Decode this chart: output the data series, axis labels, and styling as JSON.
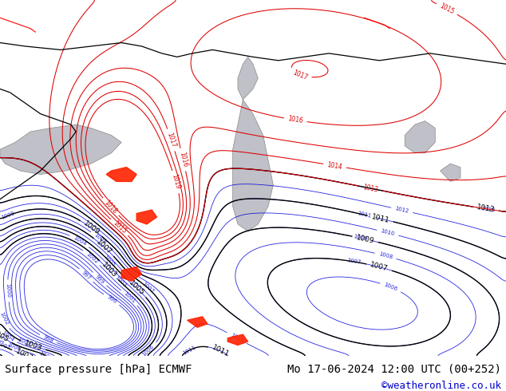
{
  "title_left": "Surface pressure [hPa] ECMWF",
  "title_right": "Mo 17-06-2024 12:00 UTC (00+252)",
  "credit": "©weatheronline.co.uk",
  "bg_color": "#c8f0a0",
  "footer_bg": "#d0d0d0",
  "footer_text_color": "#000000",
  "credit_color": "#0000cc",
  "contour_black": "#000000",
  "contour_blue": "#0000dd",
  "contour_red": "#dd0000",
  "caspian_color": "#c0c0c8",
  "black_sea_color": "#c0c0c8",
  "aral_color": "#c0c0c8",
  "red_fill_color": "#ff2200",
  "title_fontsize": 10,
  "credit_fontsize": 9,
  "figwidth": 6.34,
  "figheight": 4.9,
  "dpi": 100
}
